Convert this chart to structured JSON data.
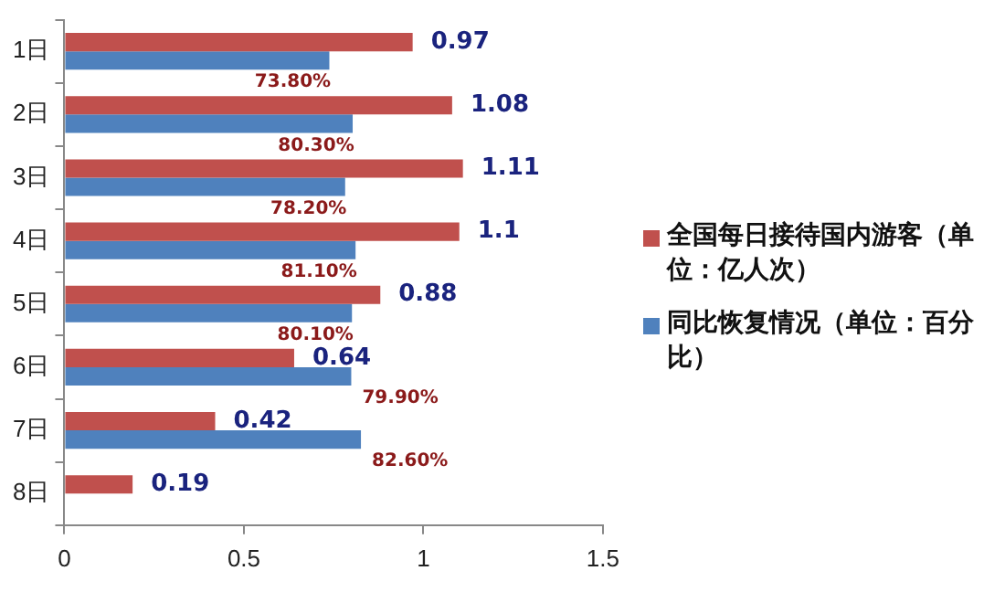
{
  "chart_data": {
    "type": "bar",
    "orientation": "horizontal",
    "categories": [
      "1日",
      "2日",
      "3日",
      "4日",
      "5日",
      "6日",
      "7日",
      "8日"
    ],
    "series": [
      {
        "name": "全国每日接待国内游客（单位：亿人次）",
        "color": "#c0504d",
        "values": [
          0.97,
          1.08,
          1.11,
          1.1,
          0.88,
          0.64,
          0.42,
          0.19
        ],
        "value_labels": [
          "0.97",
          "1.08",
          "1.11",
          "1.1",
          "0.88",
          "0.64",
          "0.42",
          "0.19"
        ]
      },
      {
        "name": "同比恢复情况（单位：百分比）",
        "color": "#4f81bd",
        "values": [
          0.738,
          0.803,
          0.782,
          0.811,
          0.801,
          0.799,
          0.826,
          null
        ],
        "value_labels": [
          "73.80%",
          "80.30%",
          "78.20%",
          "81.10%",
          "80.10%",
          "79.90%",
          "82.60%",
          null
        ]
      }
    ],
    "xlim": [
      0,
      1.5
    ],
    "xticks": [
      0,
      0.5,
      1,
      1.5
    ],
    "grid": false,
    "legend": "right"
  }
}
